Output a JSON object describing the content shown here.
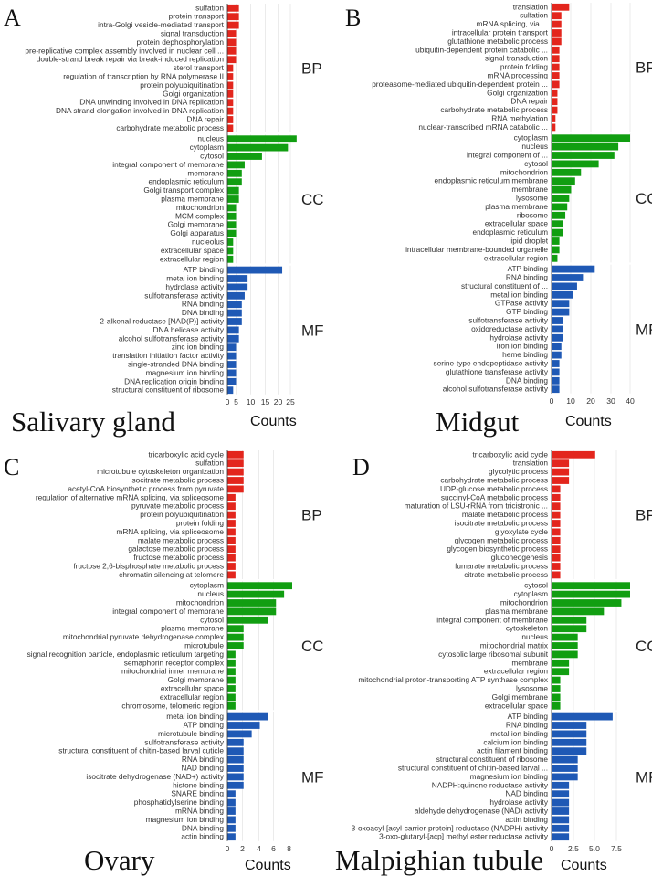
{
  "figure": {
    "colors": {
      "BP": "#e3261d",
      "CC": "#119e11",
      "MF": "#1f59b5"
    },
    "counts_label": "Counts"
  },
  "chart_data": [
    {
      "type": "bar",
      "orientation": "horizontal",
      "panel_letter": "A",
      "title": "Salivary gland",
      "xlabel": "Counts",
      "xticks": [
        "0",
        "5",
        "10",
        "15",
        "20",
        "25"
      ],
      "xlim": [
        0,
        25
      ],
      "groups": [
        {
          "name": "BP",
          "categories": [
            "sulfation",
            "protein transport",
            "intra-Golgi vesicle-mediated transport",
            "signal transduction",
            "protein dephosphorylation",
            "pre-replicative complex assembly involved in nuclear cell ...",
            "double-strand break repair via break-induced replication",
            "sterol transport",
            "regulation of transcription by RNA polymerase II",
            "protein polyubiquitination",
            "Golgi organization",
            "DNA unwinding involved in DNA replication",
            "DNA strand elongation involved in DNA replication",
            "DNA repair",
            "carbohydrate metabolic process"
          ],
          "values": [
            4,
            4,
            4,
            3,
            3,
            3,
            3,
            2,
            2,
            2,
            2,
            2,
            2,
            2,
            2
          ]
        },
        {
          "name": "CC",
          "categories": [
            "nucleus",
            "cytoplasm",
            "cytosol",
            "integral component of membrane",
            "membrane",
            "endoplasmic reticulum",
            "Golgi transport complex",
            "plasma membrane",
            "mitochondrion",
            "MCM complex",
            "Golgi membrane",
            "Golgi apparatus",
            "nucleolus",
            "extracellular space",
            "extracellular region"
          ],
          "values": [
            24,
            21,
            12,
            6,
            5,
            5,
            4,
            4,
            3,
            3,
            3,
            3,
            2,
            2,
            2
          ]
        },
        {
          "name": "MF",
          "categories": [
            "ATP binding",
            "metal ion binding",
            "hydrolase activity",
            "sulfotransferase activity",
            "RNA binding",
            "DNA binding",
            "2-alkenal reductase [NAD(P)] activity",
            "DNA helicase activity",
            "alcohol sulfotransferase activity",
            "zinc ion binding",
            "translation initiation factor activity",
            "single-stranded DNA binding",
            "magnesium ion binding",
            "DNA replication origin binding",
            "structural constituent of ribosome"
          ],
          "values": [
            19,
            7,
            7,
            6,
            5,
            5,
            5,
            4,
            4,
            3,
            3,
            3,
            3,
            3,
            2
          ]
        }
      ]
    },
    {
      "type": "bar",
      "orientation": "horizontal",
      "panel_letter": "B",
      "title": "Midgut",
      "xlabel": "Counts",
      "xticks": [
        "0",
        "10",
        "20",
        "30",
        "40"
      ],
      "xlim": [
        0,
        40
      ],
      "groups": [
        {
          "name": "BP",
          "categories": [
            "translation",
            "sulfation",
            "mRNA splicing, via ...",
            "intracellular protein transport",
            "glutathione metabolic process",
            "ubiquitin-dependent protein catabolic ...",
            "signal transduction",
            "protein folding",
            "mRNA processing",
            "proteasome-mediated ubiquitin-dependent protein ...",
            "Golgi organization",
            "DNA repair",
            "carbohydrate metabolic process",
            "RNA methylation",
            "nuclear-transcribed mRNA catabolic ..."
          ],
          "values": [
            9,
            5,
            5,
            5,
            5,
            4,
            4,
            4,
            4,
            4,
            3,
            3,
            3,
            2,
            2
          ]
        },
        {
          "name": "CC",
          "categories": [
            "cytoplasm",
            "nucleus",
            "integral component of ...",
            "cytosol",
            "mitochondrion",
            "endoplasmic reticulum membrane",
            "membrane",
            "lysosome",
            "plasma membrane",
            "ribosome",
            "extracellular space",
            "endoplasmic reticulum",
            "lipid droplet",
            "intracellular membrane-bounded organelle",
            "extracellular region"
          ],
          "values": [
            40,
            34,
            32,
            24,
            15,
            12,
            10,
            9,
            8,
            7,
            6,
            6,
            4,
            4,
            3
          ]
        },
        {
          "name": "MF",
          "categories": [
            "ATP binding",
            "RNA binding",
            "structural constituent of ...",
            "metal ion binding",
            "GTPase activity",
            "GTP binding",
            "sulfotransferase activity",
            "oxidoreductase activity",
            "hydrolase activity",
            "iron ion binding",
            "heme binding",
            "serine-type endopeptidase activity",
            "glutathione transferase activity",
            "DNA binding",
            "alcohol sulfotransferase activity"
          ],
          "values": [
            22,
            16,
            13,
            11,
            9,
            9,
            6,
            6,
            6,
            5,
            5,
            4,
            4,
            4,
            4
          ]
        }
      ]
    },
    {
      "type": "bar",
      "orientation": "horizontal",
      "panel_letter": "C",
      "title": "Ovary",
      "xlabel": "Counts",
      "xticks": [
        "0",
        "2",
        "4",
        "6",
        "8"
      ],
      "xlim": [
        0,
        8
      ],
      "groups": [
        {
          "name": "BP",
          "categories": [
            "tricarboxylic acid cycle",
            "sulfation",
            "microtubule cytoskeleton organization",
            "isocitrate metabolic process",
            "acetyl-CoA biosynthetic process from pyruvate",
            "regulation of alternative mRNA splicing, via spliceosome",
            "pyruvate metabolic process",
            "protein polyubiquitination",
            "protein folding",
            "mRNA splicing, via spliceosome",
            "malate metabolic process",
            "galactose metabolic process",
            "fructose metabolic process",
            "fructose 2,6-bisphosphate metabolic process",
            "chromatin silencing at telomere"
          ],
          "values": [
            2,
            2,
            2,
            2,
            2,
            1,
            1,
            1,
            1,
            1,
            1,
            1,
            1,
            1,
            1
          ]
        },
        {
          "name": "CC",
          "categories": [
            "cytoplasm",
            "nucleus",
            "mitochondrion",
            "integral component of membrane",
            "cytosol",
            "plasma membrane",
            "mitochondrial pyruvate dehydrogenase complex",
            "microtubule",
            "signal recognition particle, endoplasmic reticulum targeting",
            "semaphorin receptor complex",
            "mitochondrial inner membrane",
            "Golgi membrane",
            "extracellular space",
            "extracellular region",
            "chromosome, telomeric region"
          ],
          "values": [
            8,
            7,
            6,
            6,
            5,
            2,
            2,
            2,
            1,
            1,
            1,
            1,
            1,
            1,
            1
          ]
        },
        {
          "name": "MF",
          "categories": [
            "metal ion binding",
            "ATP binding",
            "microtubule binding",
            "sulfotransferase activity",
            "structural constituent of chitin-based larval cuticle",
            "RNA binding",
            "NAD binding",
            "isocitrate dehydrogenase (NAD+) activity",
            "histone binding",
            "SNARE binding",
            "phosphatidylserine binding",
            "mRNA binding",
            "magnesium ion binding",
            "DNA binding",
            "actin binding"
          ],
          "values": [
            5,
            4,
            3,
            2,
            2,
            2,
            2,
            2,
            2,
            1,
            1,
            1,
            1,
            1,
            1
          ]
        }
      ]
    },
    {
      "type": "bar",
      "orientation": "horizontal",
      "panel_letter": "D",
      "title": "Malpighian tubule",
      "xlabel": "Counts",
      "xticks": [
        "0",
        "2.5",
        "5.0",
        "7.5"
      ],
      "xlim": [
        0,
        9
      ],
      "groups": [
        {
          "name": "BP",
          "categories": [
            "tricarboxylic acid cycle",
            "translation",
            "glycolytic process",
            "carbohydrate metabolic process",
            "UDP-glucose metabolic process",
            "succinyl-CoA metabolic process",
            "maturation of LSU-rRNA from tricistronic ...",
            "malate metabolic process",
            "isocitrate metabolic process",
            "glyoxylate cycle",
            "glycogen metabolic process",
            "glycogen biosynthetic process",
            "gluconeogenesis",
            "fumarate metabolic process",
            "citrate metabolic process"
          ],
          "values": [
            5,
            2,
            2,
            2,
            1,
            1,
            1,
            1,
            1,
            1,
            1,
            1,
            1,
            1,
            1
          ]
        },
        {
          "name": "CC",
          "categories": [
            "cytosol",
            "cytoplasm",
            "mitochondrion",
            "plasma membrane",
            "integral component of membrane",
            "cytoskeleton",
            "nucleus",
            "mitochondrial matrix",
            "cytosolic large ribosomal subunit",
            "membrane",
            "extracellular region",
            "mitochondrial proton-transporting ATP synthase complex",
            "lysosome",
            "Golgi membrane",
            "extracellular space"
          ],
          "values": [
            9,
            9,
            8,
            6,
            4,
            4,
            3,
            3,
            3,
            2,
            2,
            1,
            1,
            1,
            1
          ]
        },
        {
          "name": "MF",
          "categories": [
            "ATP binding",
            "RNA binding",
            "metal ion binding",
            "calcium ion binding",
            "actin filament binding",
            "structural constituent of ribosome",
            "structural constituent of chitin-based larval ...",
            "magnesium ion binding",
            "NADPH:quinone reductase activity",
            "NAD binding",
            "hydrolase activity",
            "aldehyde dehydrogenase (NAD) activity",
            "actin binding",
            "3-oxoacyl-[acyl-carrier-protein] reductase (NADPH) activity",
            "3-oxo-glutaryl-[acp] methyl ester reductase activity"
          ],
          "values": [
            7,
            4,
            4,
            4,
            4,
            3,
            3,
            3,
            2,
            2,
            2,
            2,
            2,
            2,
            2
          ]
        }
      ]
    }
  ]
}
